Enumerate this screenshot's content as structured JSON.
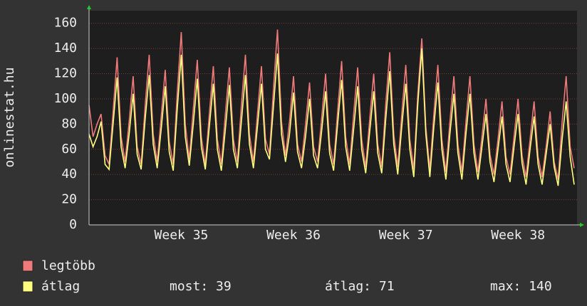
{
  "chart_data": {
    "type": "line",
    "y_label": "onlinestat.hu",
    "categories": [
      null,
      null,
      null,
      null,
      null,
      null,
      null,
      null,
      null,
      null,
      null,
      null,
      null,
      null,
      null,
      null,
      null,
      null,
      null,
      null,
      null,
      null,
      null,
      "Week 35",
      null,
      null,
      null,
      null,
      null,
      null,
      null,
      null,
      null,
      null,
      null,
      null,
      null,
      null,
      null,
      null,
      null,
      null,
      null,
      null,
      null,
      null,
      null,
      null,
      null,
      null,
      null,
      "Week 36",
      null,
      null,
      null,
      null,
      null,
      null,
      null,
      null,
      null,
      null,
      null,
      null,
      null,
      null,
      null,
      null,
      null,
      null,
      null,
      null,
      null,
      null,
      null,
      null,
      null,
      null,
      null,
      "Week 37",
      null,
      null,
      null,
      null,
      null,
      null,
      null,
      null,
      null,
      null,
      null,
      null,
      null,
      null,
      null,
      null,
      null,
      null,
      null,
      null,
      null,
      null,
      null,
      null,
      null,
      null,
      null,
      "Week 38",
      null,
      null,
      null,
      null,
      null,
      null,
      null,
      null,
      null,
      null,
      null,
      null,
      null,
      null
    ],
    "series": [
      {
        "name": "legtöbb",
        "color": "#f07a7a",
        "values": [
          95,
          70,
          80,
          88,
          55,
          48,
          90,
          133,
          70,
          50,
          82,
          118,
          62,
          48,
          95,
          135,
          72,
          50,
          86,
          123,
          66,
          48,
          105,
          153,
          80,
          52,
          92,
          131,
          70,
          48,
          88,
          126,
          68,
          48,
          88,
          125,
          68,
          50,
          95,
          135,
          72,
          50,
          88,
          126,
          68,
          56,
          108,
          155,
          82,
          55,
          82,
          118,
          64,
          50,
          80,
          113,
          62,
          50,
          84,
          120,
          64,
          48,
          90,
          130,
          70,
          48,
          88,
          125,
          68,
          46,
          84,
          120,
          64,
          46,
          96,
          137,
          72,
          46,
          88,
          127,
          68,
          44,
          104,
          148,
          78,
          44,
          88,
          127,
          68,
          42,
          82,
          118,
          64,
          42,
          82,
          118,
          64,
          42,
          70,
          100,
          56,
          40,
          68,
          98,
          54,
          40,
          70,
          100,
          55,
          38,
          68,
          98,
          54,
          38,
          62,
          90,
          50,
          36,
          82,
          118,
          62,
          45
        ]
      },
      {
        "name": "átlag",
        "color": "#ffff80",
        "values": [
          72,
          62,
          70,
          82,
          48,
          44,
          80,
          117,
          62,
          45,
          72,
          104,
          56,
          44,
          84,
          119,
          64,
          45,
          76,
          110,
          58,
          43,
          92,
          135,
          70,
          47,
          80,
          116,
          62,
          44,
          78,
          112,
          60,
          43,
          76,
          111,
          60,
          45,
          82,
          119,
          64,
          45,
          78,
          112,
          60,
          52,
          94,
          136,
          72,
          50,
          72,
          105,
          58,
          45,
          70,
          100,
          55,
          45,
          74,
          106,
          57,
          43,
          80,
          115,
          62,
          43,
          76,
          110,
          60,
          41,
          74,
          106,
          57,
          41,
          84,
          122,
          64,
          40,
          78,
          112,
          60,
          38,
          96,
          140,
          72,
          38,
          78,
          113,
          60,
          36,
          72,
          104,
          57,
          36,
          72,
          104,
          57,
          36,
          62,
          88,
          50,
          34,
          60,
          86,
          48,
          34,
          62,
          88,
          49,
          32,
          60,
          86,
          48,
          32,
          56,
          80,
          46,
          31,
          68,
          98,
          54,
          32
        ]
      }
    ],
    "ylim": [
      0,
      170
    ],
    "yticks": [
      0,
      20,
      40,
      60,
      80,
      100,
      120,
      140,
      160
    ],
    "grid": true,
    "stats": [
      {
        "label": "most:",
        "value": 39
      },
      {
        "label": "átlag:",
        "value": 71
      },
      {
        "label": "max:",
        "value": 140
      }
    ]
  }
}
